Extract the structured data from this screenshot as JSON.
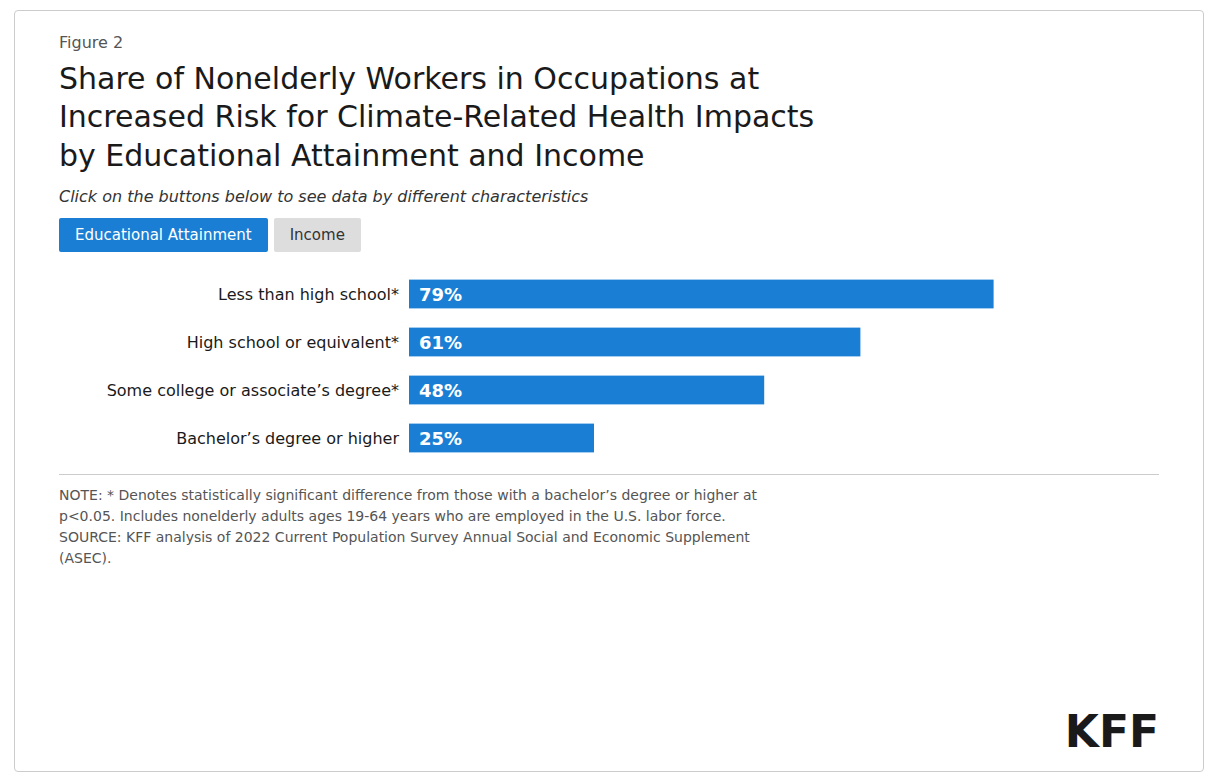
{
  "chart_data": {
    "type": "bar",
    "orientation": "horizontal",
    "figure_label": "Figure 2",
    "title": "Share of Nonelderly Workers in Occupations at\nIncreased Risk for Climate-Related Health Impacts\nby Educational Attainment and Income",
    "subtitle": "Click on the buttons below to see data by different characteristics",
    "buttons": [
      "Educational Attainment",
      "Income"
    ],
    "categories": [
      "Less than high school*",
      "High school or equivalent*",
      "Some college or associate’s degree*",
      "Bachelor’s degree or higher"
    ],
    "values": [
      79,
      61,
      48,
      25
    ],
    "value_labels": [
      "79%",
      "61%",
      "48%",
      "25%"
    ],
    "color": "#1a7fd4",
    "xlim": [
      0,
      100
    ],
    "data_labels": true,
    "tick_labels": false,
    "grid": false,
    "note": "NOTE: * Denotes statistically significant difference from those with a bachelor’s degree or higher at\np<0.05. Includes nonelderly adults ages 19-64 years who are employed in the U.S. labor force.\nSOURCE: KFF analysis of 2022 Current Population Survey Annual Social and Economic Supplement\n(ASEC).",
    "logo": "KFF"
  }
}
